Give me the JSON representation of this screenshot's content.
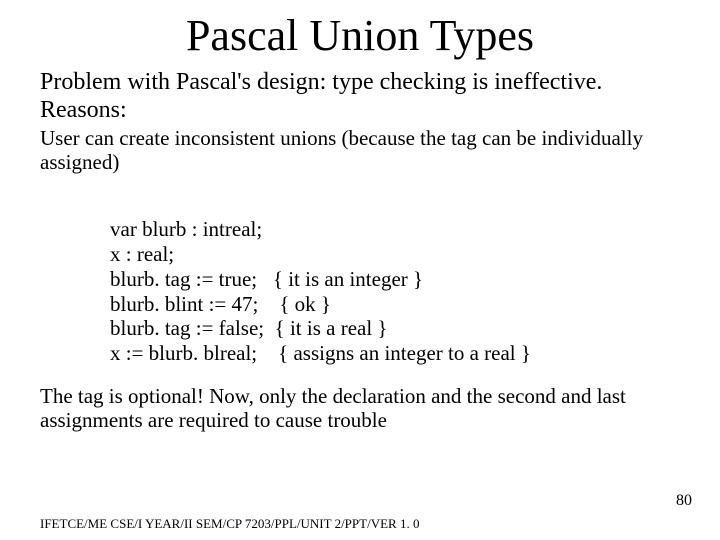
{
  "title": "Pascal Union Types",
  "para1": "Problem with Pascal's design: type checking is ineffective.  Reasons:",
  "para2": "User can create inconsistent unions (because  the tag can be individually assigned)",
  "code": {
    "l1": "var blurb : intreal;",
    "l2": "x : real;",
    "l3": "blurb. tag := true;   { it is an integer }",
    "l4": "blurb. blint := 47;    { ok }",
    "l5": "blurb. tag := false;  { it is a real }",
    "l6": "x := blurb. blreal;    { assigns an integer to a real }"
  },
  "para3": "The tag is optional! Now, only the declaration and the second and last assignments are required to cause trouble",
  "pagenum": "80",
  "footer": "IFETCE/ME CSE/I YEAR/II SEM/CP 7203/PPL/UNIT 2/PPT/VER 1. 0"
}
